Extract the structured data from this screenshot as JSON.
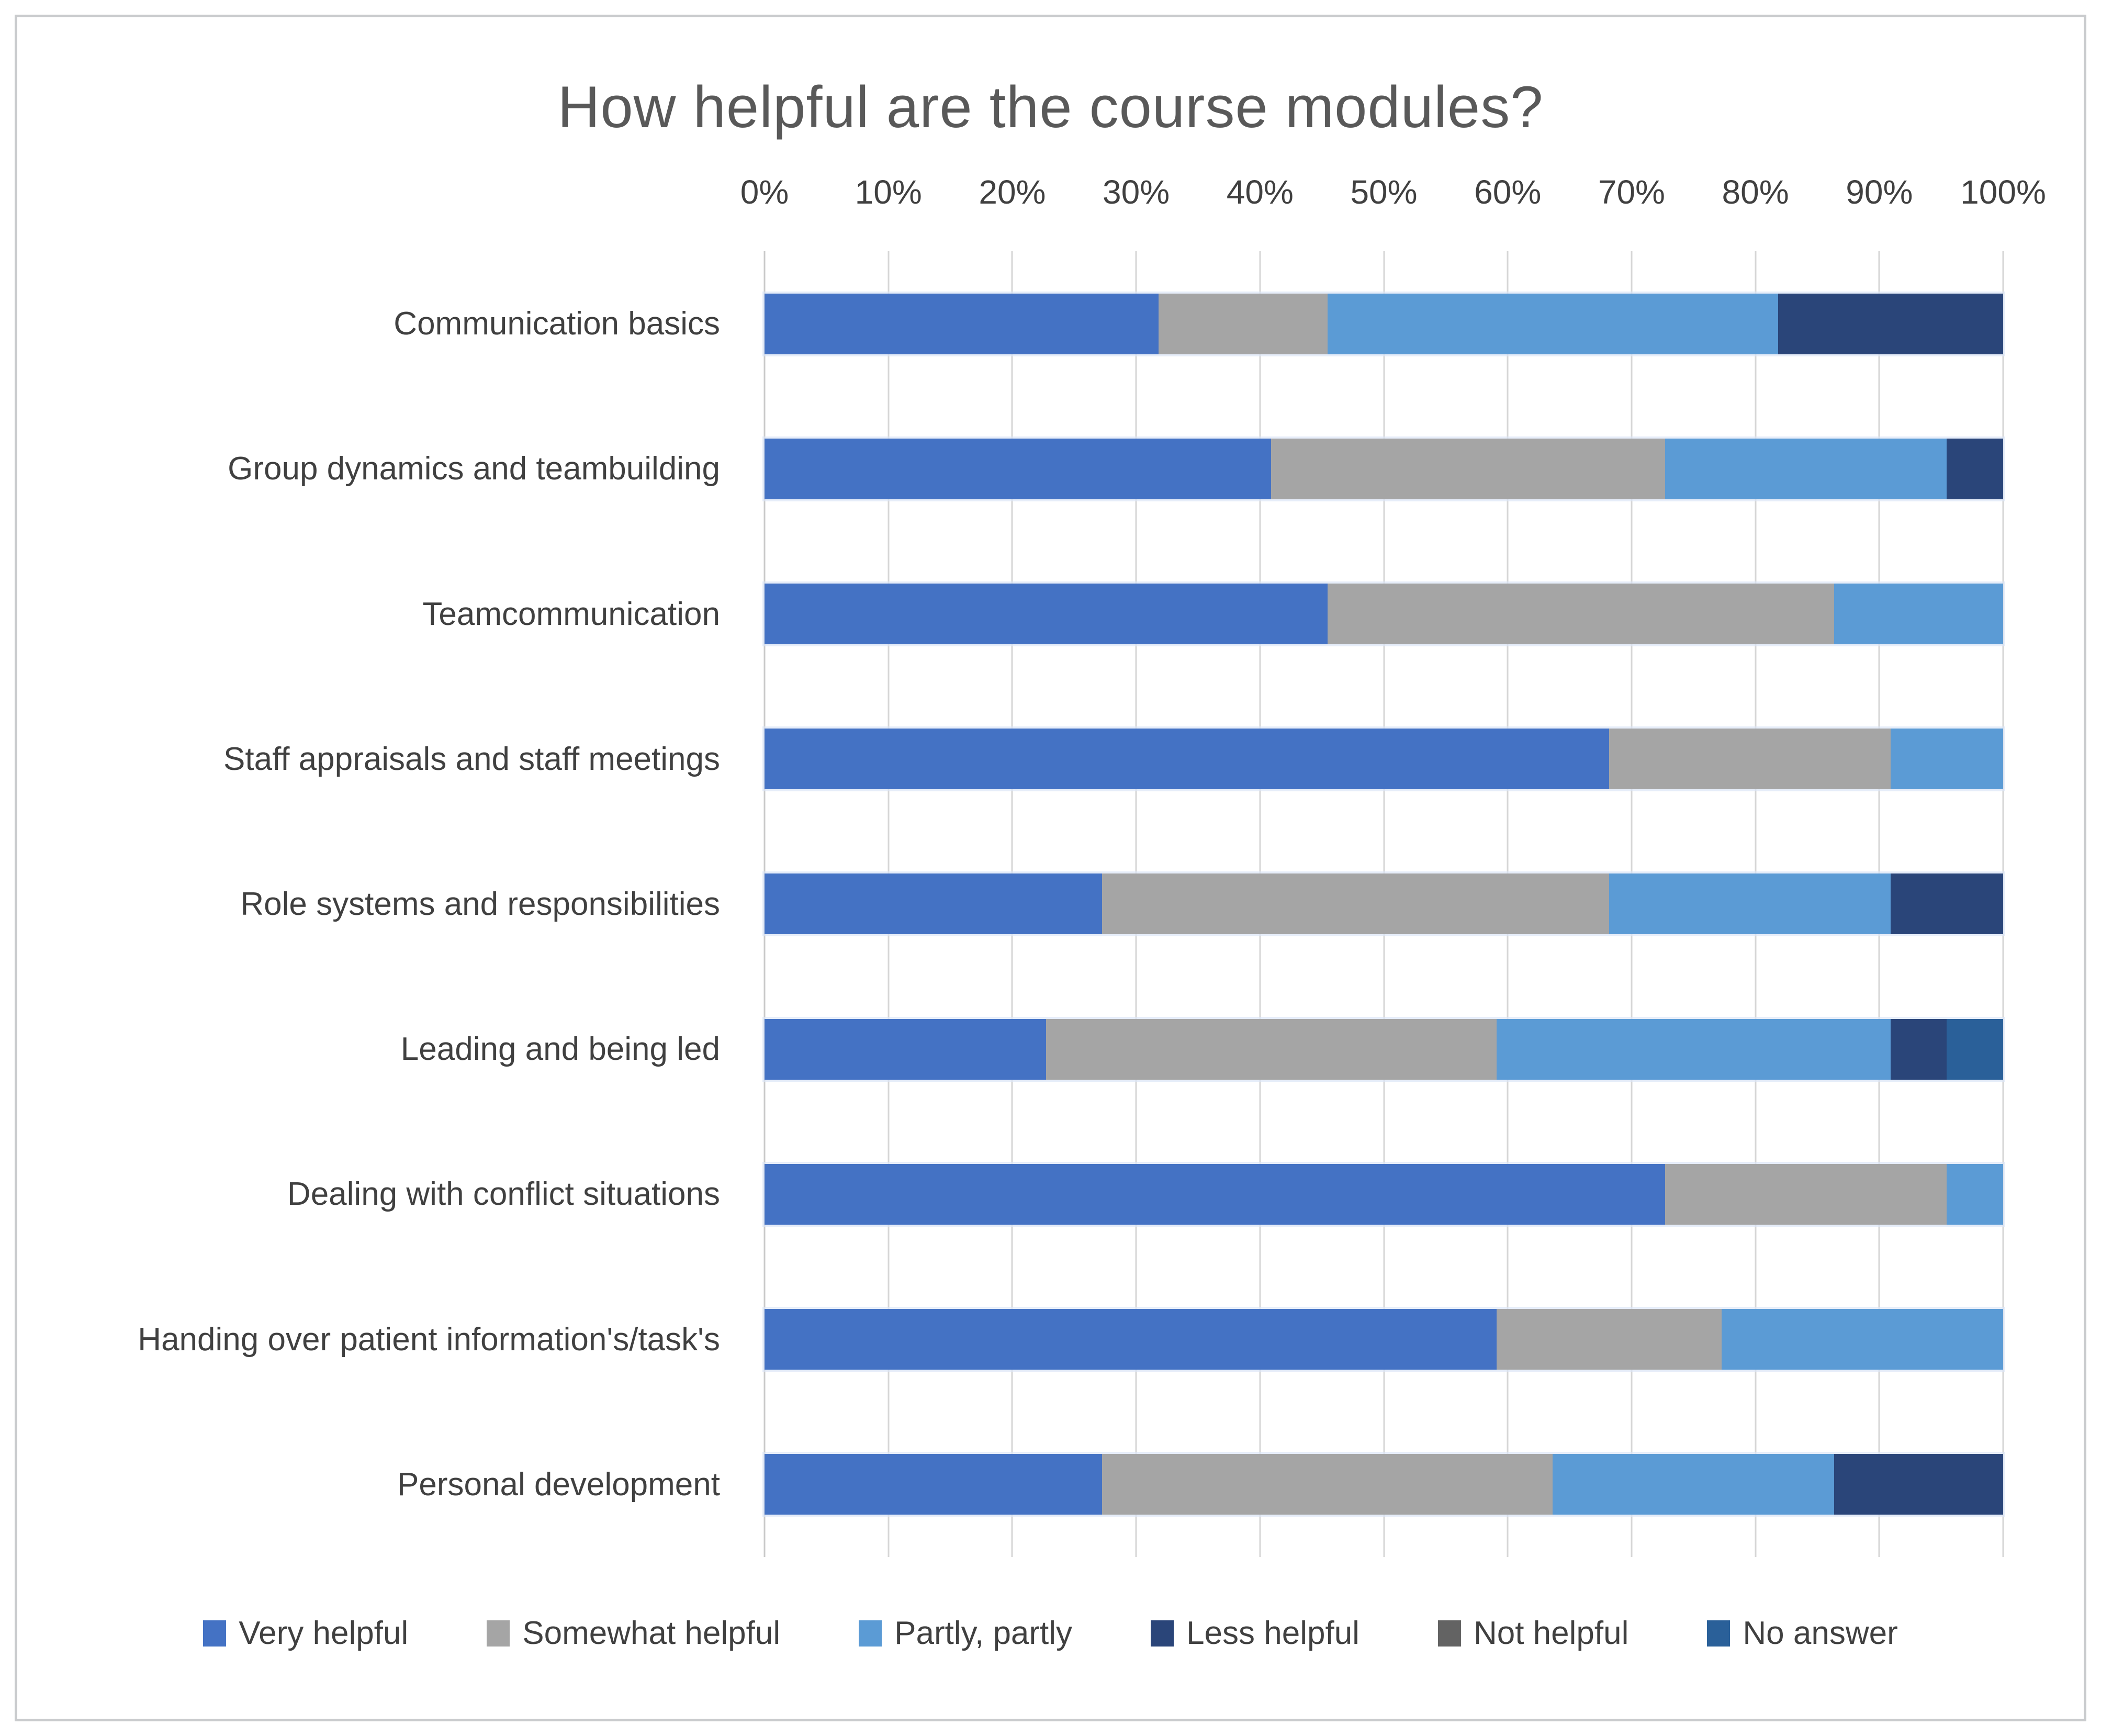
{
  "chart_data": {
    "type": "bar",
    "orientation": "horizontal",
    "stacked": true,
    "title": "How helpful are the course modules?",
    "xlabel": "",
    "ylabel": "",
    "x_axis": {
      "min": 0,
      "max": 100,
      "unit": "%",
      "ticks": [
        "0%",
        "10%",
        "20%",
        "30%",
        "40%",
        "50%",
        "60%",
        "70%",
        "80%",
        "90%",
        "100%"
      ],
      "grid": true,
      "tick_position": "top"
    },
    "legend_position": "bottom",
    "categories": [
      "Communication basics",
      "Group dynamics and teambuilding",
      "Teamcommunication",
      "Staff appraisals and staff meetings",
      "Role systems and responsibilities",
      "Leading and being led",
      "Dealing with conflict situations",
      "Handing over patient information's/task's",
      "Personal development"
    ],
    "series": [
      {
        "name": "Very helpful",
        "color": "#4472C4",
        "values": [
          31.82,
          40.91,
          45.45,
          68.18,
          27.27,
          22.73,
          72.73,
          59.09,
          27.27
        ]
      },
      {
        "name": "Somewhat helpful",
        "color": "#A5A5A5",
        "values": [
          13.64,
          31.82,
          40.91,
          22.73,
          40.91,
          36.36,
          22.73,
          18.18,
          36.36
        ]
      },
      {
        "name": "Partly, partly",
        "color": "#5B9BD5",
        "values": [
          36.36,
          22.73,
          13.64,
          9.09,
          22.73,
          31.82,
          4.55,
          22.73,
          22.73
        ]
      },
      {
        "name": "Less helpful",
        "color": "#2A4579",
        "values": [
          18.18,
          4.55,
          0,
          0,
          9.09,
          4.55,
          0,
          0,
          13.64
        ]
      },
      {
        "name": "Not helpful",
        "color": "#636363",
        "values": [
          0,
          0,
          0,
          0,
          0,
          0,
          0,
          0,
          0
        ]
      },
      {
        "name": "No answer",
        "color": "#2A6099",
        "values": [
          0,
          0,
          0,
          0,
          0,
          4.55,
          0,
          0,
          0
        ]
      }
    ]
  }
}
